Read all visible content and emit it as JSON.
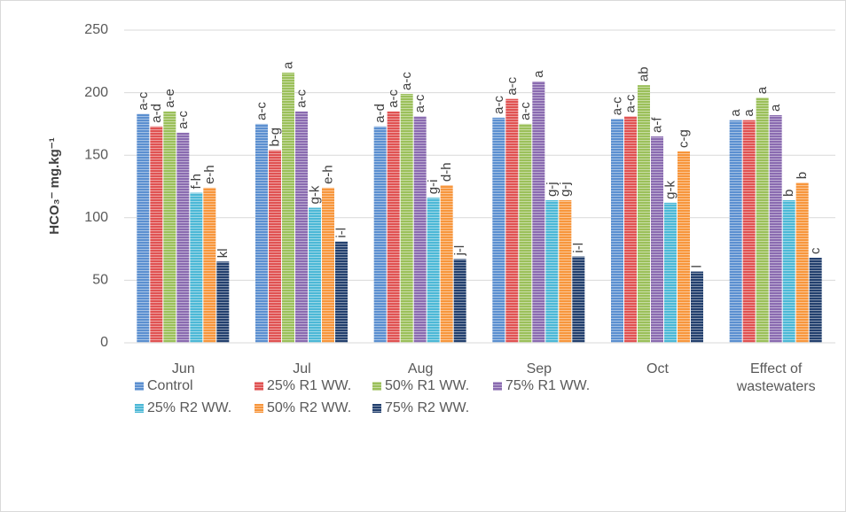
{
  "chart_data": {
    "type": "bar",
    "y_label": "HCO₃⁻   mg.kg⁻¹",
    "categories": [
      "Jun",
      "Jul",
      "Aug",
      "Sep",
      "Oct",
      "Effect of wastewaters"
    ],
    "series": [
      {
        "name": "Control",
        "color": "#5b8fd0",
        "values": [
          183,
          175,
          173,
          180,
          179,
          178
        ],
        "letters": [
          "a-c",
          "a-c",
          "a-d",
          "a-c",
          "a-c",
          "a"
        ]
      },
      {
        "name": "25% R1 WW.",
        "color": "#e05252",
        "values": [
          173,
          154,
          185,
          195,
          181,
          178
        ],
        "letters": [
          "a-d",
          "b-g",
          "a-c",
          "a-c",
          "a-c",
          "a"
        ]
      },
      {
        "name": "50% R1 WW.",
        "color": "#9bc05a",
        "values": [
          185,
          216,
          199,
          175,
          206,
          196
        ],
        "letters": [
          "a-e",
          "a",
          "a-c",
          "a-c",
          "ab",
          "a"
        ]
      },
      {
        "name": "75% R1 WW.",
        "color": "#8a6bb0",
        "values": [
          168,
          185,
          181,
          209,
          165,
          182
        ],
        "letters": [
          "a-c",
          "a-c",
          "a-c",
          "a",
          "a-f",
          "a"
        ]
      },
      {
        "name": "25% R2 WW.",
        "color": "#4cb8d6",
        "values": [
          120,
          108,
          116,
          114,
          112,
          114
        ],
        "letters": [
          "f-h",
          "g-k",
          "g-i",
          "g-j",
          "g-k",
          "b"
        ]
      },
      {
        "name": "50% R2 WW.",
        "color": "#f7963c",
        "values": [
          124,
          124,
          126,
          114,
          153,
          128
        ],
        "letters": [
          "e-h",
          "e-h",
          "d-h",
          "g-j",
          "c-g",
          "b"
        ]
      },
      {
        "name": "75% R2 WW.",
        "color": "#23406e",
        "values": [
          65,
          81,
          67,
          69,
          57,
          68
        ],
        "letters": [
          "kl",
          "i-l",
          "j-l",
          "i-l",
          "l",
          "c"
        ]
      }
    ],
    "ylim": [
      0,
      250
    ],
    "yticks": [
      0,
      50,
      100,
      150,
      200,
      250
    ],
    "grid": true
  }
}
